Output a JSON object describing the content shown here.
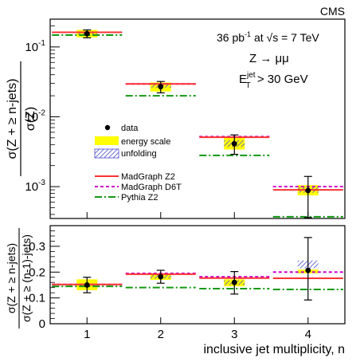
{
  "experiment_label": "CMS",
  "annotations": {
    "luminosity_prefix": "36 pb",
    "luminosity_exp": "-1",
    "luminosity_suffix": " at √s = 7 TeV",
    "process": "Z → μμ",
    "cut_main": "E",
    "cut_sup": "jet",
    "cut_sub": "T",
    "cut_value": " > 30 GeV"
  },
  "legend": [
    {
      "key": "data",
      "label": "data"
    },
    {
      "key": "energy_scale",
      "label": "energy scale",
      "color": "#ffff00"
    },
    {
      "key": "unfolding",
      "label": "unfolding",
      "color": "#4b4bcf"
    },
    {
      "key": "madgraph_z2",
      "label": "MadGraph Z2",
      "color": "#ff3333"
    },
    {
      "key": "madgraph_d6t",
      "label": "MadGraph D6T",
      "color": "#cc00cc"
    },
    {
      "key": "pythia_z2",
      "label": "Pythia Z2",
      "color": "#119911"
    }
  ],
  "chart_data": [
    {
      "type": "scatter",
      "panel": "top",
      "ylabel": "σ(Z + ≥ n-jets) / σ(Z)",
      "yscale": "log",
      "ylim": [
        0.00035,
        0.25
      ],
      "ytick_labels": [
        "10",
        "10",
        "10"
      ],
      "ytick_exponents": [
        "-1",
        "-2",
        "-3"
      ],
      "xlim": [
        0.5,
        4.5
      ],
      "x": [
        1,
        2,
        3,
        4
      ],
      "series": [
        {
          "name": "data",
          "values": [
            0.155,
            0.027,
            0.0041,
            0.00088
          ],
          "err_low": [
            0.02,
            0.005,
            0.0012,
            0.00052
          ],
          "err_high": [
            0.02,
            0.005,
            0.0014,
            0.00052
          ]
        },
        {
          "name": "energy scale",
          "low": [
            0.137,
            0.023,
            0.0034,
            0.00075
          ],
          "high": [
            0.175,
            0.031,
            0.005,
            0.00105
          ]
        },
        {
          "name": "unfolding",
          "low": [
            0.15,
            0.026,
            0.0037,
            0.00082
          ],
          "high": [
            0.161,
            0.029,
            0.0046,
            0.00098
          ]
        },
        {
          "name": "MadGraph Z2",
          "values": [
            0.162,
            0.0295,
            0.0051,
            0.0009
          ]
        },
        {
          "name": "MadGraph D6T",
          "values": [
            0.162,
            0.0295,
            0.0052,
            0.001
          ]
        },
        {
          "name": "Pythia Z2",
          "values": [
            0.148,
            0.02,
            0.0028,
            0.00037
          ]
        }
      ]
    },
    {
      "type": "scatter",
      "panel": "bottom",
      "ylabel": "σ(Z + ≥ n-jets) / σ(Z + ≥ (n-1)-jets)",
      "xlabel": "inclusive jet multiplicity, n",
      "xtick_labels": [
        "1",
        "2",
        "3",
        "4"
      ],
      "ytick_labels": [
        "0",
        "0.1",
        "0.2",
        "0.3"
      ],
      "ylim": [
        0,
        0.38
      ],
      "xlim": [
        0.5,
        4.5
      ],
      "x": [
        1,
        2,
        3,
        4
      ],
      "series": [
        {
          "name": "data",
          "values": [
            0.15,
            0.182,
            0.16,
            0.207
          ],
          "err_low": [
            0.03,
            0.025,
            0.045,
            0.115
          ],
          "err_high": [
            0.03,
            0.025,
            0.042,
            0.127
          ]
        },
        {
          "name": "energy scale",
          "low": [
            0.13,
            0.17,
            0.145,
            0.195
          ],
          "high": [
            0.172,
            0.194,
            0.172,
            0.21
          ]
        },
        {
          "name": "unfolding",
          "low": [
            0.145,
            0.175,
            0.15,
            0.215
          ],
          "high": [
            0.155,
            0.19,
            0.168,
            0.245
          ]
        },
        {
          "name": "MadGraph Z2",
          "values": [
            0.152,
            0.192,
            0.177,
            0.176
          ]
        },
        {
          "name": "MadGraph D6T",
          "values": [
            0.152,
            0.195,
            0.182,
            0.2
          ]
        },
        {
          "name": "Pythia Z2",
          "values": [
            0.145,
            0.14,
            0.136,
            0.133
          ]
        }
      ]
    }
  ]
}
